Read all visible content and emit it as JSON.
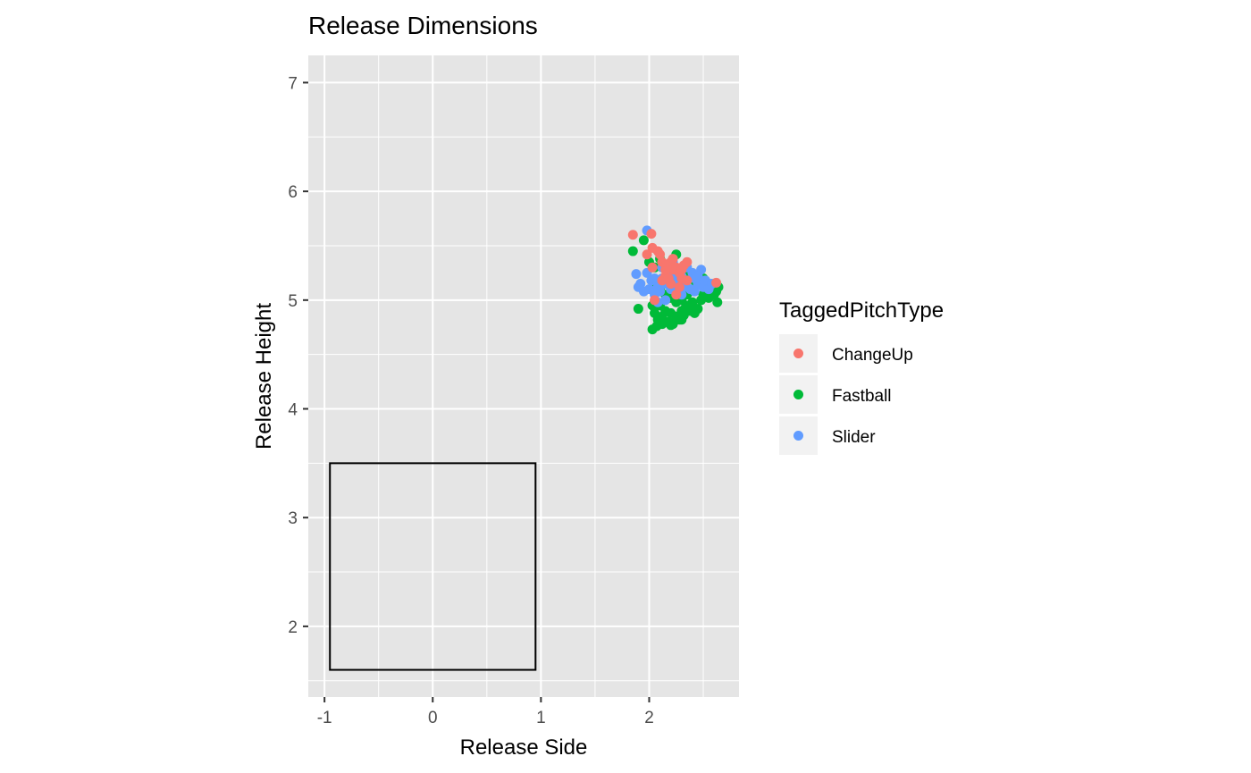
{
  "chart_data": {
    "type": "scatter",
    "title": "Release Dimensions",
    "xlabel": "Release Side",
    "ylabel": "Release Height",
    "xlim": [
      -1.15,
      2.83
    ],
    "ylim": [
      1.35,
      7.25
    ],
    "x_ticks": [
      -1,
      0,
      1,
      2
    ],
    "x_tick_labels": [
      "-1",
      "0",
      "1",
      "2"
    ],
    "y_ticks": [
      2,
      3,
      4,
      5,
      6,
      7
    ],
    "y_tick_labels": [
      "2",
      "3",
      "4",
      "5",
      "6",
      "7"
    ],
    "grid": true,
    "background": "#E5E5E5",
    "legend": {
      "title": "TaggedPitchType",
      "position": "right",
      "entries": [
        {
          "label": "ChangeUp",
          "color": "#F8766D"
        },
        {
          "label": "Fastball",
          "color": "#00BA38"
        },
        {
          "label": "Slider",
          "color": "#619CFF"
        }
      ]
    },
    "annotations": [
      {
        "type": "rect",
        "xmin": -0.95,
        "xmax": 0.95,
        "ymin": 1.6,
        "ymax": 3.5,
        "color": "#000000",
        "fill": "none"
      }
    ],
    "series": [
      {
        "name": "Fastball",
        "color": "#00BA38",
        "points": [
          [
            1.85,
            5.45
          ],
          [
            1.95,
            5.55
          ],
          [
            2.0,
            5.35
          ],
          [
            1.9,
            4.92
          ],
          [
            2.03,
            4.95
          ],
          [
            2.05,
            4.88
          ],
          [
            2.08,
            4.82
          ],
          [
            2.1,
            4.95
          ],
          [
            2.12,
            4.85
          ],
          [
            2.15,
            4.9
          ],
          [
            2.18,
            4.8
          ],
          [
            2.2,
            4.88
          ],
          [
            2.22,
            4.78
          ],
          [
            2.25,
            4.85
          ],
          [
            2.28,
            4.82
          ],
          [
            2.3,
            4.9
          ],
          [
            2.32,
            4.86
          ],
          [
            2.35,
            4.95
          ],
          [
            2.38,
            4.9
          ],
          [
            2.4,
            4.98
          ],
          [
            2.42,
            4.88
          ],
          [
            2.45,
            4.92
          ],
          [
            2.48,
            5.0
          ],
          [
            2.5,
            5.05
          ],
          [
            2.52,
            5.1
          ],
          [
            2.55,
            5.15
          ],
          [
            2.58,
            5.1
          ],
          [
            2.6,
            5.05
          ],
          [
            2.62,
            5.08
          ],
          [
            2.64,
            5.12
          ],
          [
            2.63,
            4.98
          ],
          [
            2.55,
            5.02
          ],
          [
            2.5,
            5.2
          ],
          [
            2.45,
            5.15
          ],
          [
            2.4,
            5.1
          ],
          [
            2.35,
            5.05
          ],
          [
            2.3,
            5.0
          ],
          [
            2.25,
            4.98
          ],
          [
            2.2,
            5.02
          ],
          [
            2.15,
            5.05
          ],
          [
            2.1,
            5.1
          ],
          [
            2.05,
            5.15
          ],
          [
            2.03,
            4.73
          ],
          [
            2.07,
            4.76
          ],
          [
            2.12,
            4.78
          ],
          [
            2.2,
            4.77
          ],
          [
            2.3,
            4.82
          ],
          [
            2.25,
            5.42
          ],
          [
            2.15,
            5.3
          ],
          [
            2.28,
            5.25
          ],
          [
            2.35,
            5.22
          ],
          [
            2.42,
            5.18
          ],
          [
            2.05,
            5.3
          ],
          [
            2.1,
            5.38
          ],
          [
            2.18,
            5.2
          ],
          [
            2.33,
            4.92
          ]
        ]
      },
      {
        "name": "Slider",
        "color": "#619CFF",
        "points": [
          [
            1.98,
            5.64
          ],
          [
            1.88,
            5.24
          ],
          [
            1.9,
            5.12
          ],
          [
            1.92,
            5.15
          ],
          [
            1.95,
            5.08
          ],
          [
            1.98,
            5.25
          ],
          [
            2.0,
            5.1
          ],
          [
            2.02,
            5.18
          ],
          [
            2.05,
            5.05
          ],
          [
            2.08,
            5.12
          ],
          [
            2.1,
            5.08
          ],
          [
            2.12,
            5.2
          ],
          [
            2.15,
            5.15
          ],
          [
            2.18,
            5.22
          ],
          [
            2.2,
            5.18
          ],
          [
            2.22,
            5.25
          ],
          [
            2.25,
            5.2
          ],
          [
            2.28,
            5.15
          ],
          [
            2.3,
            5.22
          ],
          [
            2.32,
            5.12
          ],
          [
            2.35,
            5.18
          ],
          [
            2.38,
            5.1
          ],
          [
            2.4,
            5.25
          ],
          [
            2.42,
            5.2
          ],
          [
            2.45,
            5.15
          ],
          [
            2.48,
            5.28
          ],
          [
            2.5,
            5.12
          ],
          [
            2.52,
            5.18
          ],
          [
            2.55,
            5.1
          ],
          [
            2.58,
            5.15
          ],
          [
            2.05,
            5.2
          ],
          [
            2.12,
            5.3
          ],
          [
            2.22,
            5.35
          ],
          [
            2.35,
            5.3
          ],
          [
            2.42,
            5.08
          ],
          [
            2.3,
            5.05
          ],
          [
            2.15,
            5.0
          ],
          [
            2.08,
            4.98
          ],
          [
            2.2,
            5.1
          ],
          [
            2.45,
            5.22
          ]
        ]
      },
      {
        "name": "ChangeUp",
        "color": "#F8766D",
        "points": [
          [
            1.85,
            5.6
          ],
          [
            2.02,
            5.61
          ],
          [
            1.98,
            5.42
          ],
          [
            2.03,
            5.48
          ],
          [
            2.08,
            5.45
          ],
          [
            2.1,
            5.42
          ],
          [
            2.03,
            5.3
          ],
          [
            2.05,
            5.0
          ],
          [
            2.12,
            5.18
          ],
          [
            2.15,
            5.22
          ],
          [
            2.18,
            5.3
          ],
          [
            2.2,
            5.35
          ],
          [
            2.22,
            5.28
          ],
          [
            2.25,
            5.3
          ],
          [
            2.28,
            5.25
          ],
          [
            2.3,
            5.2
          ],
          [
            2.32,
            5.32
          ],
          [
            2.35,
            5.35
          ],
          [
            2.2,
            5.15
          ],
          [
            2.18,
            5.2
          ],
          [
            2.25,
            5.05
          ],
          [
            2.15,
            5.28
          ],
          [
            2.62,
            5.16
          ],
          [
            2.28,
            5.12
          ],
          [
            2.35,
            5.18
          ],
          [
            2.22,
            5.38
          ],
          [
            2.12,
            5.35
          ],
          [
            2.3,
            5.28
          ]
        ]
      }
    ]
  }
}
